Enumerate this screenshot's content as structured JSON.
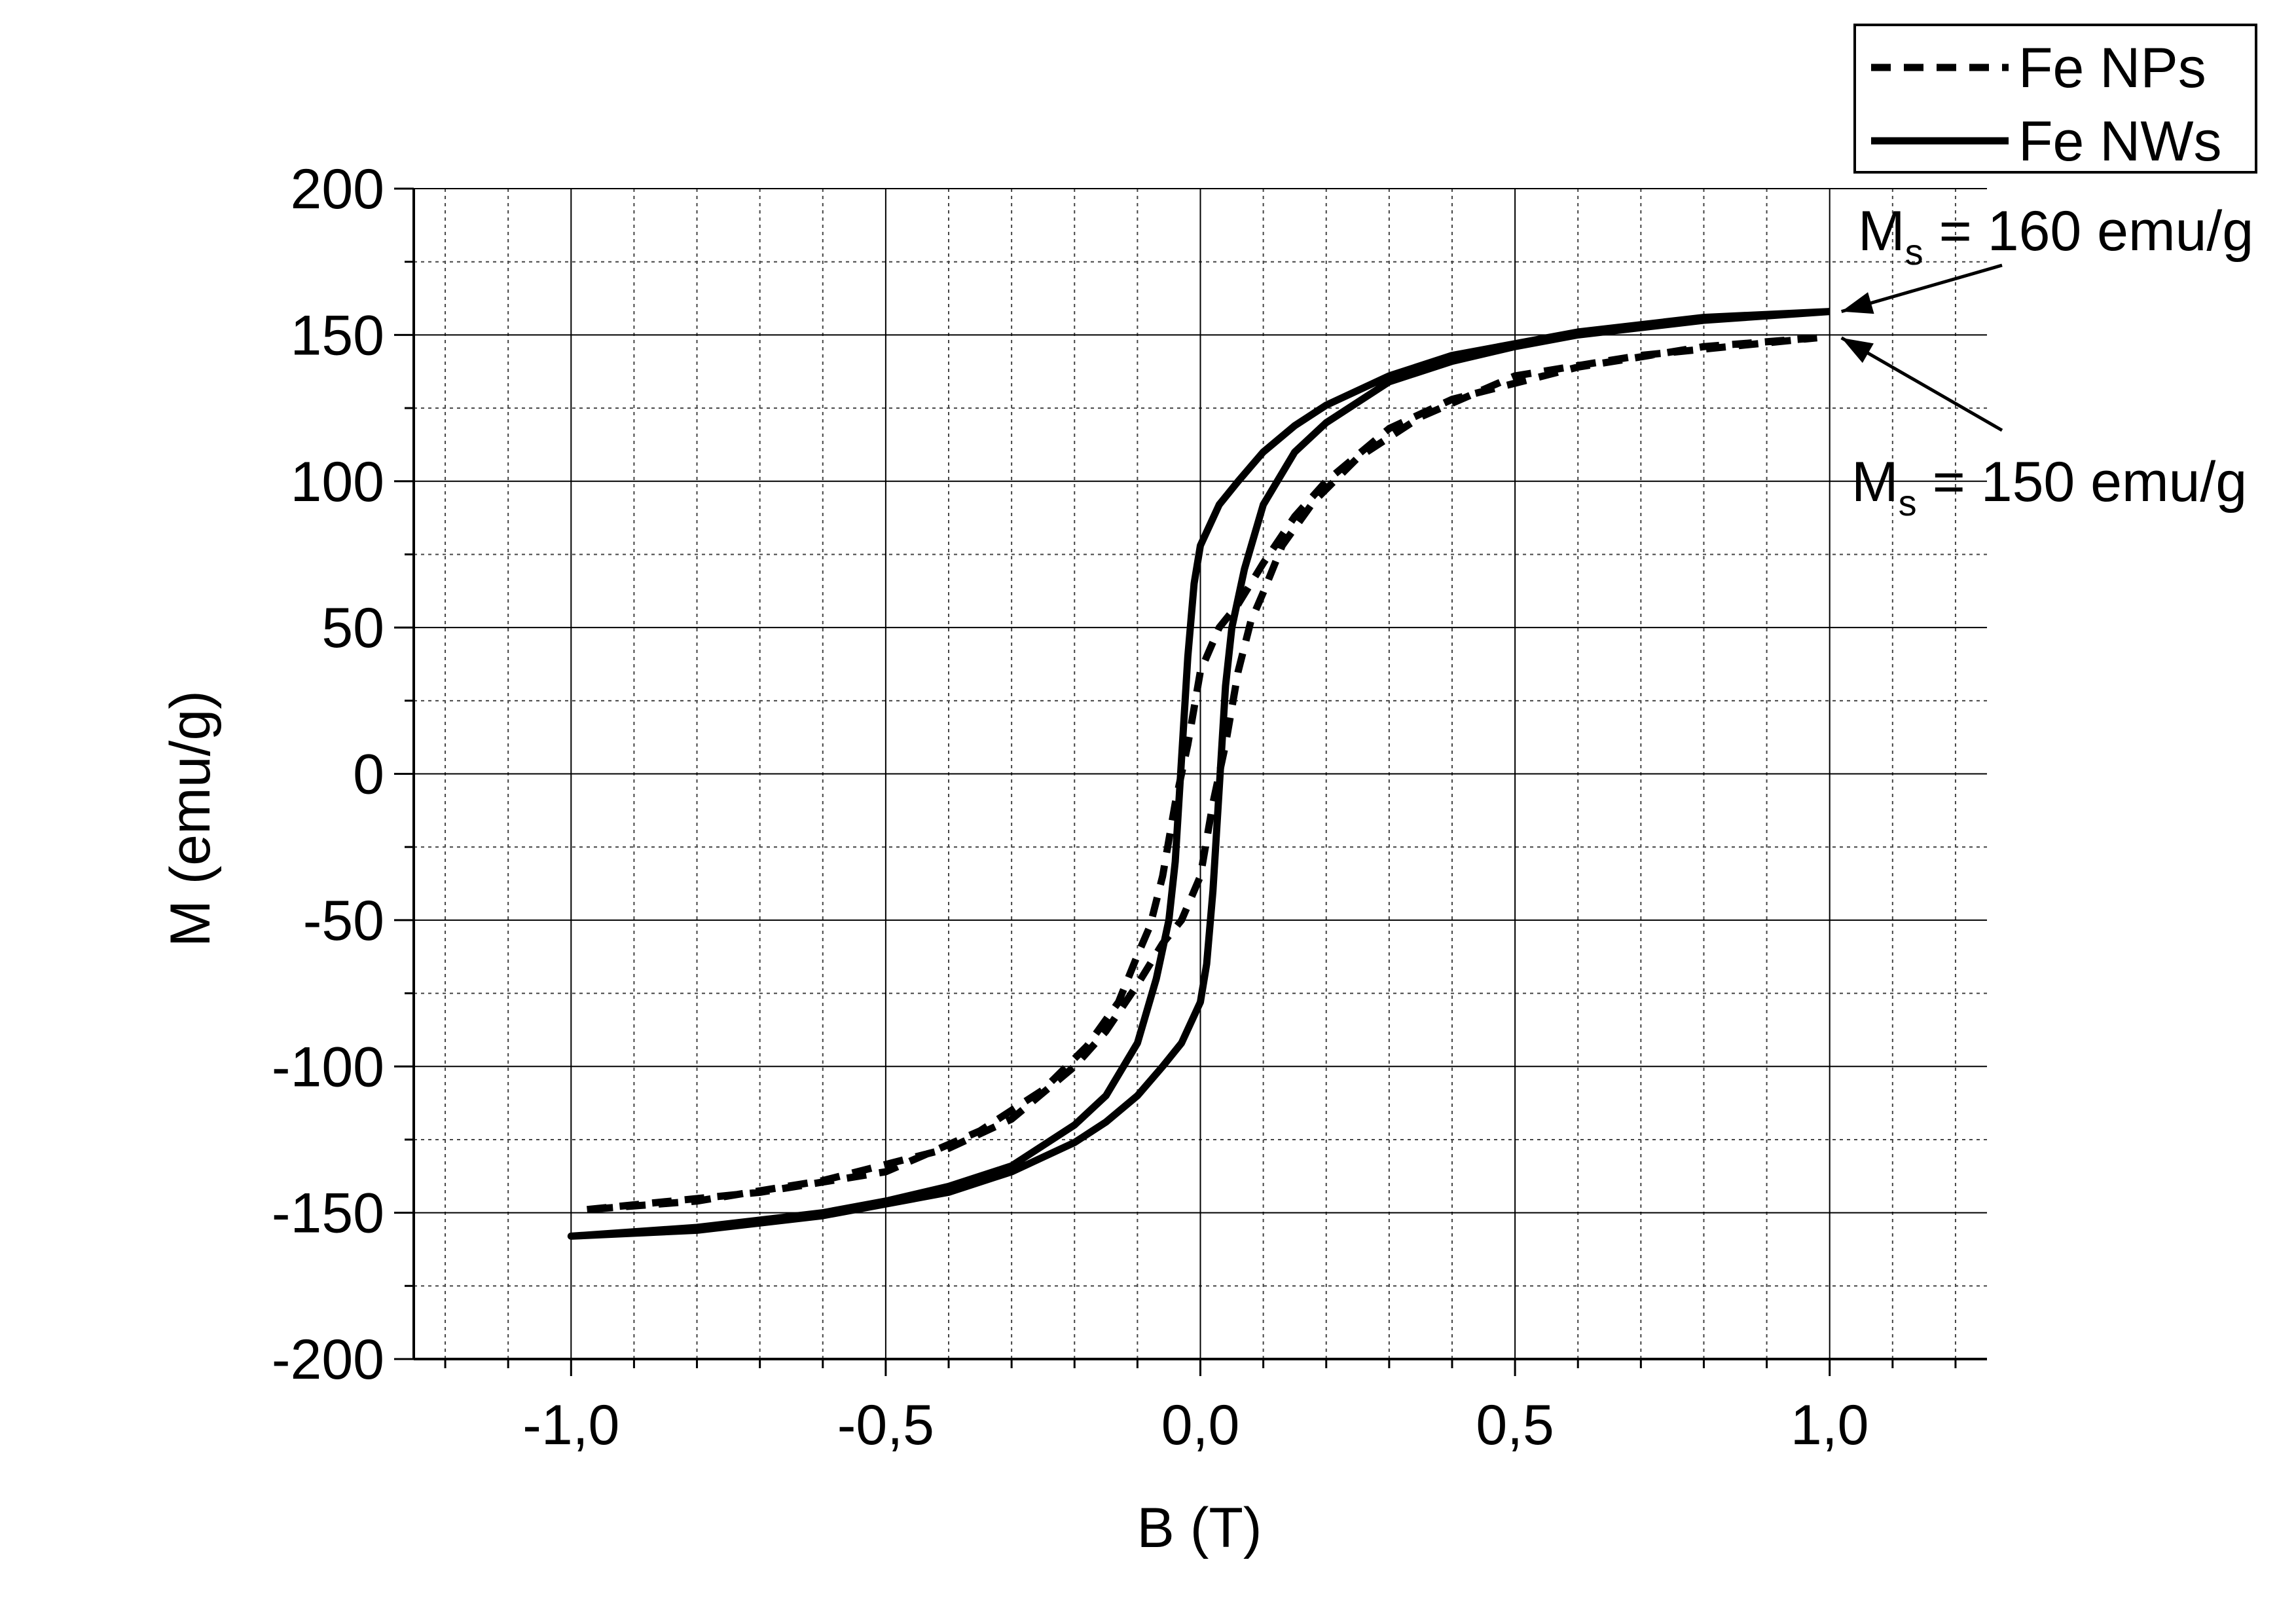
{
  "chart_data": {
    "type": "line",
    "xlabel": "B (T)",
    "ylabel": "M (emu/g)",
    "xlim": [
      -1.25,
      1.25
    ],
    "ylim": [
      -200,
      200
    ],
    "xticks": [
      {
        "value": -1,
        "label": "-1,0"
      },
      {
        "value": -0.5,
        "label": "-0,5"
      },
      {
        "value": 0,
        "label": "0,0"
      },
      {
        "value": 0.5,
        "label": "0,5"
      },
      {
        "value": 1,
        "label": "1,0"
      }
    ],
    "yticks": [
      -200,
      -150,
      -100,
      -50,
      0,
      50,
      100,
      150,
      200
    ],
    "minor_xticks": [
      -1.2,
      -1.1,
      -0.9,
      -0.8,
      -0.7,
      -0.6,
      -0.4,
      -0.3,
      -0.2,
      -0.1,
      0.1,
      0.2,
      0.3,
      0.4,
      0.6,
      0.7,
      0.8,
      0.9,
      1.1,
      1.2
    ],
    "minor_yticks": [
      -175,
      -125,
      -75,
      -25,
      25,
      75,
      125,
      175
    ],
    "grid": true,
    "legend": "top-right",
    "series": [
      {
        "name": "Fe NPs",
        "color": "#000000",
        "dashed": true,
        "x": [
          0.98,
          0.8,
          0.6,
          0.4,
          0.3,
          0.2,
          0.15,
          0.1,
          0.06,
          0.03,
          0.0,
          -0.02,
          -0.04,
          -0.06,
          -0.08,
          -0.1,
          -0.13,
          -0.18,
          -0.25,
          -0.35,
          -0.5,
          -0.7,
          -0.98,
          -0.8,
          -0.6,
          -0.4,
          -0.3,
          -0.2,
          -0.15,
          -0.1,
          -0.06,
          -0.03,
          0.0,
          0.02,
          0.04,
          0.06,
          0.08,
          0.1,
          0.13,
          0.18,
          0.25,
          0.35,
          0.5,
          0.7,
          0.98
        ],
        "values": [
          149,
          146,
          139,
          128,
          118,
          100,
          88,
          72,
          58,
          50,
          35,
          10,
          -10,
          -35,
          -52,
          -62,
          -78,
          -93,
          -108,
          -122,
          -136,
          -143,
          -149,
          -146,
          -139,
          -128,
          -118,
          -100,
          -88,
          -72,
          -58,
          -50,
          -35,
          -10,
          10,
          35,
          52,
          62,
          78,
          93,
          108,
          122,
          136,
          143,
          149
        ]
      },
      {
        "name": "Fe NWs",
        "color": "#000000",
        "dashed": false,
        "x": [
          1.0,
          0.8,
          0.6,
          0.4,
          0.3,
          0.2,
          0.15,
          0.1,
          0.06,
          0.03,
          0.0,
          -0.01,
          -0.02,
          -0.03,
          -0.04,
          -0.05,
          -0.07,
          -0.1,
          -0.15,
          -0.2,
          -0.3,
          -0.4,
          -0.5,
          -0.6,
          -0.8,
          -1.0,
          -0.8,
          -0.6,
          -0.4,
          -0.3,
          -0.2,
          -0.15,
          -0.1,
          -0.06,
          -0.03,
          0.0,
          0.01,
          0.02,
          0.03,
          0.04,
          0.05,
          0.07,
          0.1,
          0.15,
          0.2,
          0.3,
          0.4,
          0.5,
          0.6,
          0.8,
          1.0
        ],
        "values": [
          158,
          156,
          151,
          143,
          136,
          126,
          119,
          110,
          100,
          92,
          78,
          65,
          40,
          5,
          -30,
          -50,
          -70,
          -92,
          -110,
          -120,
          -134,
          -141,
          -146,
          -150,
          -155,
          -158,
          -156,
          -151,
          -143,
          -136,
          -126,
          -119,
          -110,
          -100,
          -92,
          -78,
          -65,
          -40,
          -5,
          30,
          50,
          70,
          92,
          110,
          120,
          134,
          141,
          146,
          150,
          155,
          158
        ]
      }
    ],
    "annotations": [
      {
        "label": "M",
        "subscript": "s",
        "value_text": "= 160 emu/g",
        "point": {
          "x": 1.0,
          "y": 158
        }
      },
      {
        "label": "M",
        "subscript": "s",
        "value_text": "= 150 emu/g",
        "point": {
          "x": 1.0,
          "y": 149
        }
      }
    ]
  }
}
